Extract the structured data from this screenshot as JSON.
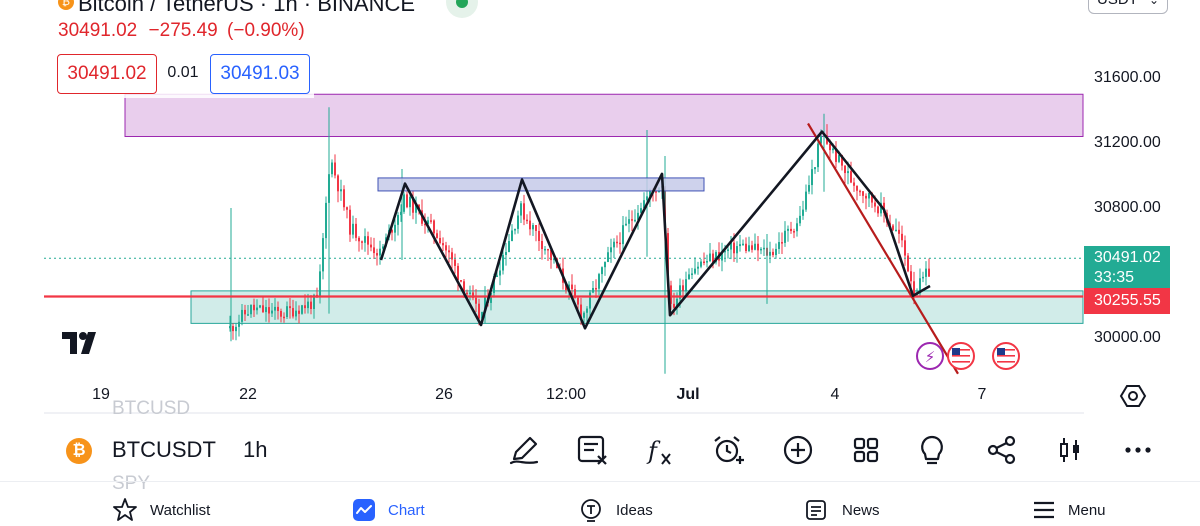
{
  "header": {
    "title": "Bitcoin / TetherUS · 1h · BINANCE",
    "last_price": "30491.02",
    "change": "−275.49",
    "change_pct": "(−0.90%)",
    "bid": "30491.02",
    "spread": "0.01",
    "ask": "30491.03",
    "currency": "USDT"
  },
  "colors": {
    "up": "#22ab94",
    "down": "#f23645",
    "accent": "#2962ff",
    "resistance_zone": "#e1bee7",
    "support_zone": "#b2dfdb",
    "pattern_box": "#c5cae9"
  },
  "chart_data": {
    "type": "candlestick",
    "symbol": "BTCUSDT",
    "interval": "1h",
    "y_axis": {
      "ticks": [
        {
          "value": 30000,
          "label": "30000.00"
        },
        {
          "value": 30800,
          "label": "30800.00"
        },
        {
          "value": 31200,
          "label": "31200.00"
        },
        {
          "value": 31600,
          "label": "31600.00"
        }
      ]
    },
    "x_axis": {
      "ticks": [
        {
          "label": "19",
          "bold": false
        },
        {
          "label": "22",
          "bold": false
        },
        {
          "label": "26",
          "bold": false
        },
        {
          "label": "12:00",
          "bold": false
        },
        {
          "label": "Jul",
          "bold": true
        },
        {
          "label": "4",
          "bold": false
        },
        {
          "label": "7",
          "bold": false
        }
      ]
    },
    "current_price": {
      "value": 30491.02,
      "label": "30491.02",
      "countdown": "33:35"
    },
    "horizontal_level": {
      "value": 30255.55,
      "label": "30255.55"
    },
    "zones": [
      {
        "name": "resistance",
        "from": 31240,
        "to": 31500
      },
      {
        "name": "support",
        "from": 30090,
        "to": 30290
      }
    ],
    "pattern_box": {
      "from": 30905,
      "to": 30985
    },
    "pattern_line": [
      30480,
      30950,
      30080,
      30975,
      30060,
      31010,
      30140,
      31270,
      30790,
      30260,
      30320
    ],
    "trend_line": {
      "from": 31320,
      "to": 29780
    }
  },
  "toolbar": {
    "symbol": "BTCUSDT",
    "interval": "1h",
    "coin_glyph": "₿",
    "compare_top": "BTCUSD",
    "compare_bottom": "SPY",
    "tools": [
      "pen-icon",
      "note-icon",
      "indicators-icon",
      "alert-icon",
      "add-icon",
      "layout-icon",
      "ideas-bulb-icon",
      "share-icon",
      "candles-icon",
      "more-icon"
    ]
  },
  "bottom_nav": {
    "items": [
      {
        "label": "Watchlist",
        "icon": "star-icon"
      },
      {
        "label": "Chart",
        "icon": "chart-icon",
        "active": true
      },
      {
        "label": "Ideas",
        "icon": "ideas-icon"
      },
      {
        "label": "News",
        "icon": "news-icon"
      },
      {
        "label": "Menu",
        "icon": "menu-icon"
      }
    ]
  }
}
